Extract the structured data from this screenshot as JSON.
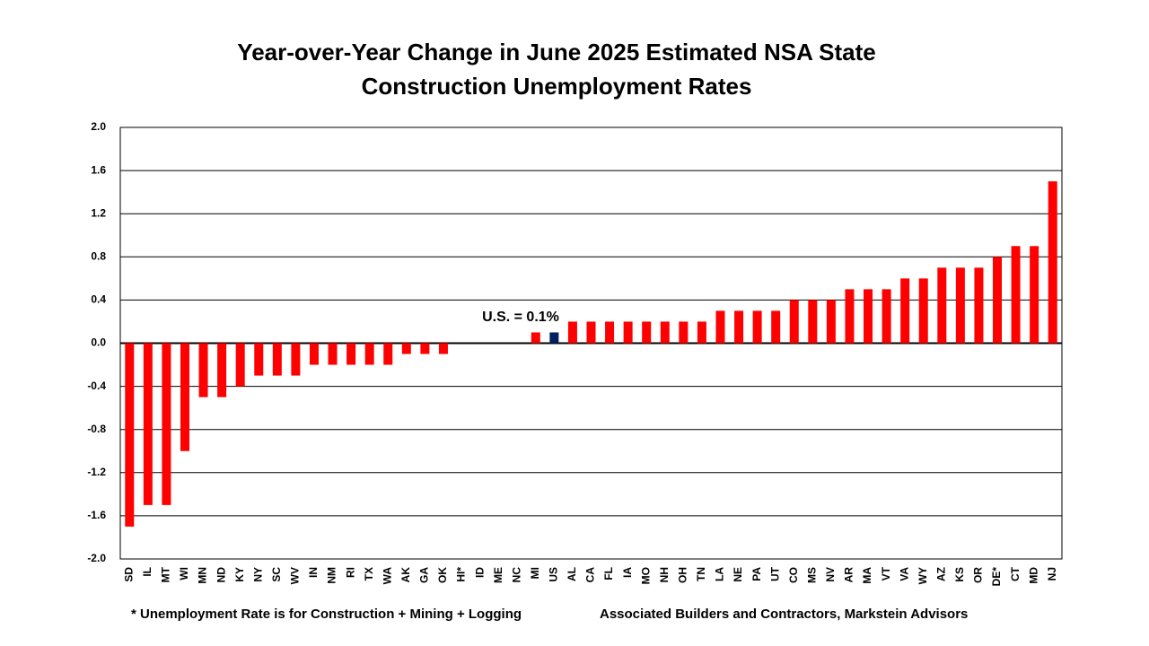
{
  "chart_data": {
    "type": "bar",
    "title": [
      "Year-over-Year Change in June 2025 Estimated NSA State",
      "Construction Unemployment Rates"
    ],
    "categories": [
      "SD",
      "IL",
      "MT",
      "WI",
      "MN",
      "ND",
      "KY",
      "NY",
      "SC",
      "WV",
      "IN",
      "NM",
      "RI",
      "TX",
      "WA",
      "AK",
      "GA",
      "OK",
      "HI*",
      "ID",
      "ME",
      "NC",
      "MI",
      "US",
      "AL",
      "CA",
      "FL",
      "IA",
      "MO",
      "NH",
      "OH",
      "TN",
      "LA",
      "NE",
      "PA",
      "UT",
      "CO",
      "MS",
      "NV",
      "AR",
      "MA",
      "VT",
      "VA",
      "WY",
      "AZ",
      "KS",
      "OR",
      "DE*",
      "CT",
      "MD",
      "NJ"
    ],
    "values": [
      -1.7,
      -1.5,
      -1.5,
      -1.0,
      -0.5,
      -0.5,
      -0.4,
      -0.3,
      -0.3,
      -0.3,
      -0.2,
      -0.2,
      -0.2,
      -0.2,
      -0.2,
      -0.1,
      -0.1,
      -0.1,
      0,
      0,
      0,
      0,
      0.1,
      0.1,
      0.2,
      0.2,
      0.2,
      0.2,
      0.2,
      0.2,
      0.2,
      0.2,
      0.3,
      0.3,
      0.3,
      0.3,
      0.4,
      0.4,
      0.4,
      0.5,
      0.5,
      0.5,
      0.6,
      0.6,
      0.7,
      0.7,
      0.7,
      0.8,
      0.9,
      0.9,
      1.5
    ],
    "color": "#ff0000",
    "highlight": {
      "category": "US",
      "color": "#002060"
    },
    "ylim": [
      -2,
      2
    ],
    "yticks": [
      {
        "value": -2,
        "label": "-2.0"
      },
      -1.6,
      -1.2,
      -0.8,
      -0.4,
      {
        "value": 0,
        "label": "0.0"
      },
      0.4,
      0.8,
      1.2,
      1.6,
      {
        "value": 2,
        "label": "2.0"
      }
    ],
    "grid": true,
    "annotation": "U.S. = 0.1%",
    "footnotes": [
      "* Unemployment Rate is for Construction + Mining + Logging",
      "Associated Builders and Contractors, Markstein Advisors"
    ]
  }
}
